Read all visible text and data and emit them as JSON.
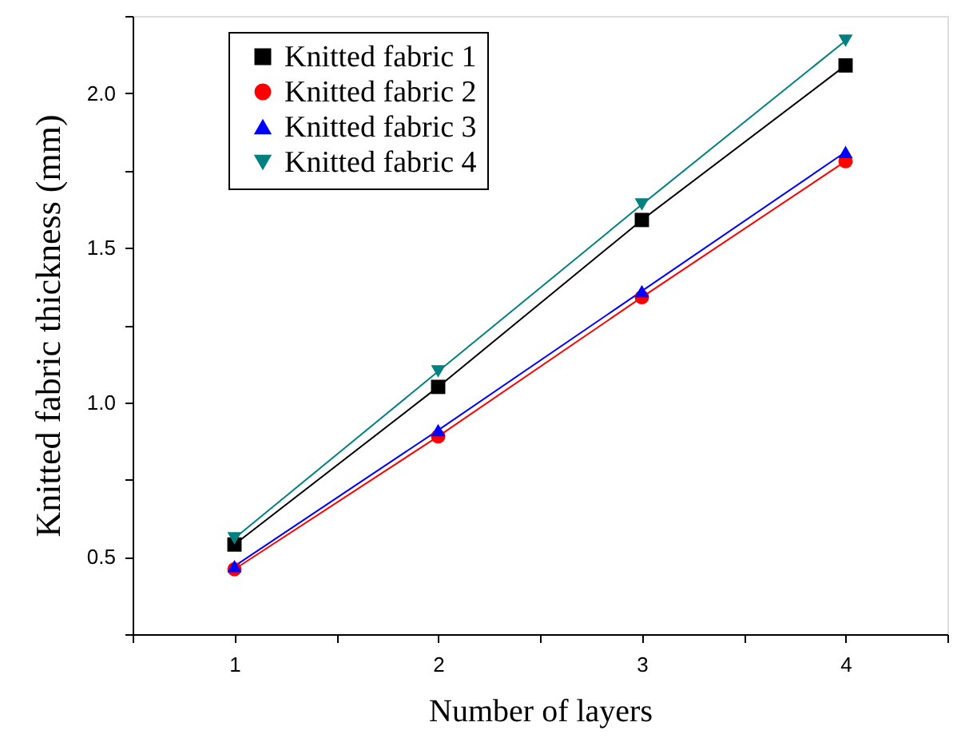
{
  "chart_data": {
    "type": "line",
    "xlabel": "Number of layers",
    "ylabel": "Knitted fabric thickness (mm)",
    "x": [
      1,
      2,
      3,
      4
    ],
    "series": [
      {
        "name": "Knitted fabric 1",
        "color": "#000000",
        "marker": "square",
        "values": [
          0.54,
          1.05,
          1.59,
          2.09
        ]
      },
      {
        "name": "Knitted fabric 2",
        "color": "#ff0000",
        "marker": "circle",
        "values": [
          0.46,
          0.89,
          1.34,
          1.78
        ]
      },
      {
        "name": "Knitted fabric 3",
        "color": "#0000ff",
        "marker": "triangle",
        "values": [
          0.47,
          0.91,
          1.36,
          1.81
        ]
      },
      {
        "name": "Knitted fabric 4",
        "color": "#008080",
        "marker": "triangle-down",
        "values": [
          0.56,
          1.1,
          1.64,
          2.17
        ]
      }
    ],
    "xlim": [
      0.5,
      4.5
    ],
    "xticks": [
      {
        "value": 0.5,
        "label": null
      },
      1,
      {
        "value": 1.5,
        "label": null
      },
      2,
      {
        "value": 2.5,
        "label": null
      },
      3,
      {
        "value": 3.5,
        "label": null
      },
      4,
      {
        "value": 4.5,
        "label": null
      }
    ],
    "ylim": [
      0.25,
      2.25
    ],
    "yticks": [
      {
        "value": 0.25,
        "label": null
      },
      0.5,
      {
        "value": 0.75,
        "label": null
      },
      {
        "value": 1,
        "label": "1.0"
      },
      {
        "value": 1.25,
        "label": null
      },
      1.5,
      {
        "value": 1.75,
        "label": null
      },
      {
        "value": 2,
        "label": "2.0"
      },
      {
        "value": 2.25,
        "label": null
      }
    ],
    "grid": false,
    "legend": "top left",
    "line_style": "solid"
  }
}
